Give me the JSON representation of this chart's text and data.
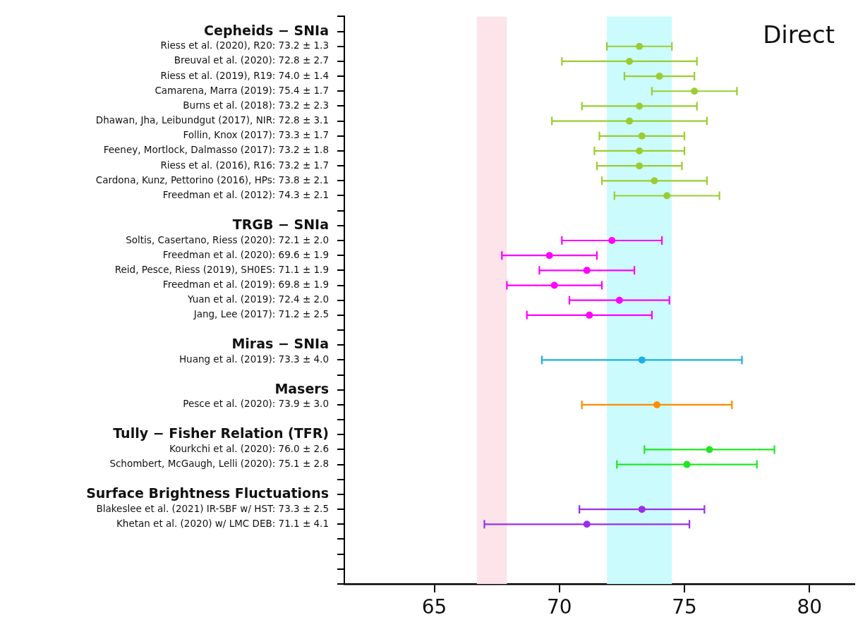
{
  "chart_data": {
    "type": "scatter",
    "orientation": "horizontal",
    "categories": [
      null,
      "Cepheids − SNIa",
      "Riess et al. (2020), R20: 73.2 ± 1.3",
      "Breuval et al. (2020): 72.8 ± 2.7",
      "Riess et al. (2019), R19: 74.0 ± 1.4",
      "Camarena, Marra (2019): 75.4 ± 1.7",
      "Burns et al. (2018): 73.2 ± 2.3",
      "Dhawan, Jha, Leibundgut (2017), NIR: 72.8 ± 3.1",
      "Follin, Knox (2017): 73.3 ± 1.7",
      "Feeney, Mortlock, Dalmasso (2017): 73.2 ± 1.8",
      "Riess et al. (2016), R16: 73.2 ± 1.7",
      "Cardona, Kunz, Pettorino (2016), HPs: 73.8 ± 2.1",
      "Freedman et al. (2012): 74.3 ± 2.1",
      null,
      "TRGB − SNIa",
      "Soltis, Casertano, Riess (2020): 72.1 ± 2.0",
      "Freedman et al. (2020): 69.6 ± 1.9",
      "Reid, Pesce, Riess (2019), SH0ES: 71.1 ± 1.9",
      "Freedman et al. (2019): 69.8 ± 1.9",
      "Yuan et al. (2019): 72.4 ± 2.0",
      "Jang, Lee (2017): 71.2 ± 2.5",
      null,
      "Miras − SNIa",
      "Huang et al. (2019): 73.3 ± 4.0",
      null,
      "Masers",
      "Pesce et al. (2020): 73.9 ± 3.0",
      null,
      "Tully − Fisher Relation (TFR)",
      "Kourkchi et al. (2020): 76.0 ± 2.6",
      "Schombert, McGaugh, Lelli (2020): 75.1 ± 2.8",
      null,
      "Surface Brightness Fluctuations",
      "Blakeslee et al. (2021) IR-SBF w/ HST: 73.3 ± 2.5",
      "Khetan et al. (2020) w/ LMC DEB: 71.1 ± 4.1",
      null,
      null,
      null,
      null
    ],
    "values": [
      null,
      null,
      73.2,
      72.8,
      74.0,
      75.4,
      73.2,
      72.8,
      73.3,
      73.2,
      73.2,
      73.8,
      74.3,
      null,
      null,
      72.1,
      69.6,
      71.1,
      69.8,
      72.4,
      71.2,
      null,
      null,
      73.3,
      null,
      null,
      73.9,
      null,
      null,
      76.0,
      75.1,
      null,
      null,
      73.3,
      71.1,
      null,
      null,
      null,
      null
    ],
    "errors": [
      null,
      null,
      1.3,
      2.7,
      1.4,
      1.7,
      2.3,
      3.1,
      1.7,
      1.8,
      1.7,
      2.1,
      2.1,
      null,
      null,
      2.0,
      1.9,
      1.9,
      1.9,
      2.0,
      2.5,
      null,
      null,
      4.0,
      null,
      null,
      3.0,
      null,
      null,
      2.6,
      2.8,
      null,
      null,
      2.5,
      4.1,
      null,
      null,
      null,
      null
    ],
    "colors": [
      null,
      null,
      "#9acd32",
      "#9acd32",
      "#9acd32",
      "#9acd32",
      "#9acd32",
      "#9acd32",
      "#9acd32",
      "#9acd32",
      "#9acd32",
      "#9acd32",
      "#9acd32",
      null,
      null,
      "#ff00ff",
      "#ff00ff",
      "#ff00ff",
      "#ff00ff",
      "#ff00ff",
      "#ff00ff",
      null,
      null,
      "#1ab0e8",
      null,
      null,
      "#ff8c00",
      null,
      null,
      "#22e622",
      "#22e622",
      null,
      null,
      "#9a2ee8",
      "#9a2ee8",
      null,
      null,
      null,
      null
    ],
    "xlim": [
      61.4,
      81.8
    ],
    "xticks": [
      65,
      70,
      75,
      80
    ],
    "bands": [
      {
        "axis": "x",
        "from": 66.7,
        "to": 67.9,
        "color": "#fde4ea"
      },
      {
        "axis": "x",
        "from": 71.9,
        "to": 74.5,
        "color": "#ccfbfd"
      }
    ],
    "annotations": [
      "Direct"
    ],
    "legend": false,
    "grid": false,
    "marker": "circle"
  }
}
